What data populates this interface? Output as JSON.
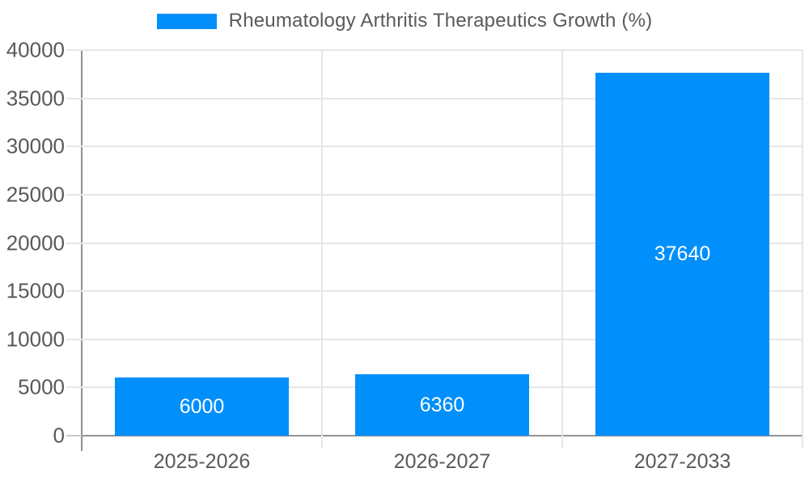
{
  "legend": {
    "label": "Rheumatology Arthritis Therapeutics Growth (%)"
  },
  "chart_data": {
    "type": "bar",
    "title": "Rheumatology Arthritis Therapeutics Growth (%)",
    "series_name": "Rheumatology Arthritis Therapeutics Growth (%)",
    "categories": [
      "2025-2026",
      "2026-2027",
      "2027-2033"
    ],
    "values": [
      6000,
      6360,
      37640
    ],
    "data_labels": [
      "6000",
      "6360",
      "37640"
    ],
    "ylim": [
      0,
      40000
    ],
    "ytick_step": 5000,
    "ytick_labels": [
      "0",
      "5000",
      "10000",
      "15000",
      "20000",
      "25000",
      "30000",
      "35000",
      "40000"
    ],
    "grid": true,
    "legend_position": "top",
    "xlabel": "",
    "ylabel": ""
  },
  "colors": {
    "bar": "#008FFB",
    "axis_line": "#929292",
    "gridline": "#e6e6e6",
    "text": "#595959",
    "data_label": "#ffffff",
    "background": "#ffffff"
  }
}
